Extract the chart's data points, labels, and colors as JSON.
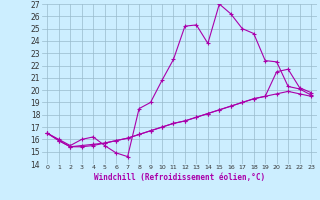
{
  "xlabel": "Windchill (Refroidissement éolien,°C)",
  "xlim": [
    -0.5,
    23.5
  ],
  "ylim": [
    14,
    27
  ],
  "yticks": [
    14,
    15,
    16,
    17,
    18,
    19,
    20,
    21,
    22,
    23,
    24,
    25,
    26,
    27
  ],
  "xticks": [
    0,
    1,
    2,
    3,
    4,
    5,
    6,
    7,
    8,
    9,
    10,
    11,
    12,
    13,
    14,
    15,
    16,
    17,
    18,
    19,
    20,
    21,
    22,
    23
  ],
  "bg_color": "#cceeff",
  "line_color": "#aa00aa",
  "grid_color": "#99bbcc",
  "line1_x": [
    0,
    1,
    2,
    3,
    4,
    5,
    6,
    7,
    8,
    9,
    10,
    11,
    12,
    13,
    14,
    15,
    16,
    17,
    18,
    19,
    20,
    21,
    22,
    23
  ],
  "line1_y": [
    16.5,
    16.0,
    15.5,
    16.0,
    16.2,
    15.5,
    14.9,
    14.6,
    18.5,
    19.0,
    20.8,
    22.5,
    25.2,
    25.3,
    23.8,
    27.0,
    26.2,
    25.0,
    24.6,
    22.4,
    22.3,
    20.3,
    20.1,
    19.6
  ],
  "line2_x": [
    0,
    1,
    2,
    3,
    4,
    5,
    6,
    7,
    8,
    9,
    10,
    11,
    12,
    13,
    14,
    15,
    16,
    17,
    18,
    19,
    20,
    21,
    22,
    23
  ],
  "line2_y": [
    16.5,
    15.9,
    15.4,
    15.5,
    15.6,
    15.7,
    15.9,
    16.1,
    16.4,
    16.7,
    17.0,
    17.3,
    17.5,
    17.8,
    18.1,
    18.4,
    18.7,
    19.0,
    19.3,
    19.5,
    19.7,
    19.9,
    19.7,
    19.5
  ],
  "line3_x": [
    0,
    1,
    2,
    3,
    4,
    5,
    6,
    7,
    8,
    9,
    10,
    11,
    12,
    13,
    14,
    15,
    16,
    17,
    18,
    19,
    20,
    21,
    22,
    23
  ],
  "line3_y": [
    16.5,
    15.9,
    15.4,
    15.4,
    15.5,
    15.7,
    15.9,
    16.1,
    16.4,
    16.7,
    17.0,
    17.3,
    17.5,
    17.8,
    18.1,
    18.4,
    18.7,
    19.0,
    19.3,
    19.5,
    21.5,
    21.7,
    20.2,
    19.8
  ]
}
